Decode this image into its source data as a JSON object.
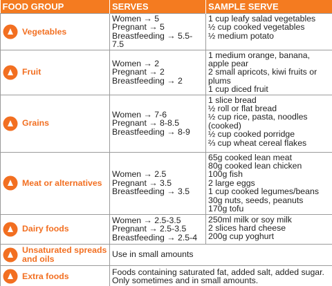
{
  "table": {
    "headers": [
      "FOOD GROUP",
      "SERVES",
      "SAMPLE SERVE"
    ],
    "rows": [
      {
        "group": "Vegetables",
        "serves": [
          "Women → 5",
          "Pregnant → 5",
          "Breastfeeding → 5.5-7.5"
        ],
        "sample": [
          "1 cup leafy salad vegetables",
          "½ cup cooked vegetables",
          "½ medium potato"
        ]
      },
      {
        "group": "Fruit",
        "serves": [
          "Women → 2",
          "Pregnant → 2",
          "Breastfeeding → 2"
        ],
        "sample": [
          "1 medium orange, banana, apple pear",
          "2 small apricots, kiwi fruits or plums",
          "1 cup diced fruit"
        ]
      },
      {
        "group": "Grains",
        "serves": [
          "Women → 7-6",
          "Pregnant → 8-8.5",
          "Breastfeeding → 8-9"
        ],
        "sample": [
          "1 slice bread",
          "½ roll or flat bread",
          "½ cup rice, pasta, noodles (cooked)",
          "½ cup cooked porridge",
          "⅔ cup wheat cereal flakes"
        ]
      },
      {
        "group": "Meat or alternatives",
        "serves": [
          "Women → 2.5",
          "Pregnant → 3.5",
          "Breastfeeding → 3.5"
        ],
        "sample": [
          "65g cooked lean meat",
          "80g cooked lean chicken",
          "100g fish",
          "2 large eggs",
          "1 cup cooked legumes/beans",
          "30g nuts, seeds, peanuts",
          "170g tofu"
        ]
      },
      {
        "group": "Dairy foods",
        "serves": [
          "Women → 2.5-3.5",
          "Pregnant → 2.5-3.5",
          "Breastfeeding → 2.5-4"
        ],
        "sample": [
          "250ml milk or soy milk",
          "2 slices hard cheese",
          "200g cup yoghurt"
        ]
      },
      {
        "group": "Unsaturated spreads and oils",
        "note": [
          "Use in small amounts"
        ]
      },
      {
        "group": "Extra foods",
        "note": [
          "Foods containing saturated fat, added salt, added sugar.",
          "Only sometimes and in small amounts."
        ]
      }
    ]
  }
}
